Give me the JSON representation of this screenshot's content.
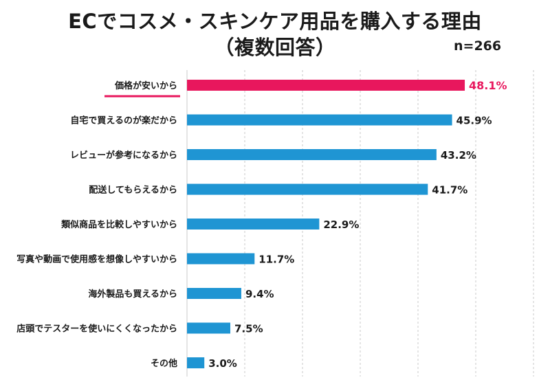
{
  "title_line1": "ECでコスメ・スキンケア用品を購入する理由",
  "title_line2": "（複数回答）",
  "sample_size": "n=266",
  "colors": {
    "default_bar": "#1f95d3",
    "highlight_bar": "#e8175d",
    "grid": "#c8c8c8"
  },
  "chart_data": {
    "type": "bar",
    "orientation": "horizontal",
    "title": "ECでコスメ・スキンケア用品を購入する理由（複数回答）",
    "categories": [
      "価格が安いから",
      "自宅で買えるのが楽だから",
      "レビューが参考になるから",
      "配送してもらえるから",
      "類似商品を比較しやすいから",
      "写真や動画で使用感を想像しやすいから",
      "海外製品も買えるから",
      "店頭でテスターを使いにくくなったから",
      "その他"
    ],
    "values": [
      48.1,
      45.9,
      43.2,
      41.7,
      22.9,
      11.7,
      9.4,
      7.5,
      3.0
    ],
    "value_labels": [
      "48.1%",
      "45.9%",
      "43.2%",
      "41.7%",
      "22.9%",
      "11.7%",
      "9.4%",
      "7.5%",
      "3.0%"
    ],
    "highlight_index": 0,
    "xlim": [
      0,
      60
    ],
    "grid": true,
    "xlabel": "",
    "ylabel": ""
  }
}
